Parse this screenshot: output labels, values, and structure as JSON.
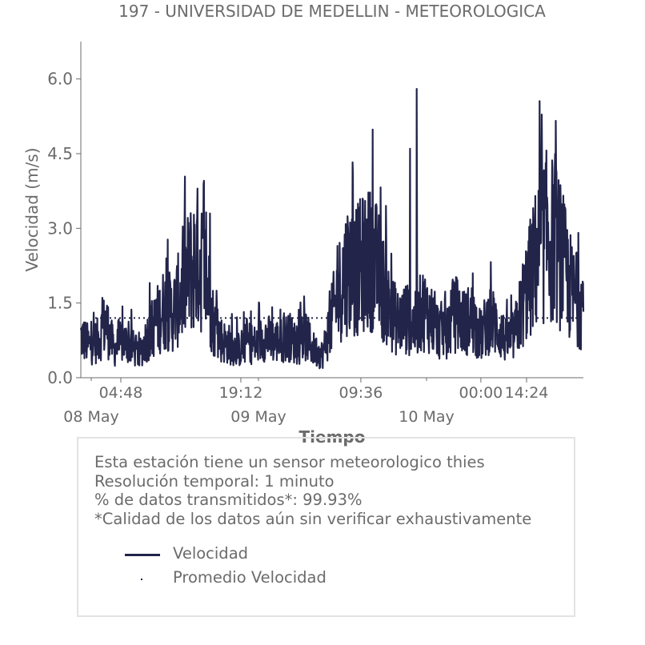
{
  "chart_data": {
    "type": "line",
    "title": "197 - UNIVERSIDAD DE MEDELLIN - METEOROLOGICA",
    "xlabel": "Tiempo",
    "ylabel": "Velocidad (m/s)",
    "ylim": [
      0,
      6.75
    ],
    "y_ticks": [
      "0.0",
      "1.5",
      "3.0",
      "4.5",
      "6.0"
    ],
    "x_range_hours": [
      0,
      60.3
    ],
    "x_ticks": [
      {
        "hour": 4.8,
        "label": "04:48"
      },
      {
        "hour": 19.2,
        "label": "19:12"
      },
      {
        "hour": 33.6,
        "label": "09:36"
      },
      {
        "hour": 48.0,
        "label": "00:00"
      },
      {
        "hour": 62.4,
        "label": "14:24"
      }
    ],
    "x_day_labels": [
      {
        "hour": 0,
        "label": "08 May"
      },
      {
        "hour": 24,
        "label": "09 May"
      },
      {
        "hour": 48,
        "label": "10 May"
      }
    ],
    "grid": false,
    "legend_position": "below",
    "series": [
      {
        "name": "Velocidad",
        "style": "line",
        "color": "#22244a",
        "x_hours": [
          0,
          1,
          2,
          3,
          4,
          5,
          6,
          7,
          8,
          9,
          10,
          11,
          12,
          13,
          14,
          15,
          16,
          17,
          18,
          19,
          20,
          21,
          22,
          23,
          24,
          25,
          26,
          27,
          28,
          29,
          30,
          31,
          32,
          33,
          34,
          35,
          36,
          37,
          38,
          39,
          40,
          41,
          42,
          43,
          44,
          45,
          46,
          47,
          48,
          49,
          50,
          51,
          52,
          53,
          54,
          55,
          56,
          57,
          58,
          59,
          60
        ],
        "y": [
          0.9,
          0.7,
          0.8,
          1.2,
          0.6,
          0.8,
          0.7,
          0.5,
          0.9,
          1.2,
          1.5,
          1.4,
          1.8,
          2.3,
          2.6,
          2.2,
          1.1,
          0.8,
          0.7,
          0.6,
          0.8,
          0.7,
          0.9,
          0.8,
          0.8,
          0.9,
          0.7,
          0.9,
          0.6,
          0.5,
          1.2,
          1.9,
          2.4,
          2.3,
          2.5,
          2.6,
          2.1,
          1.5,
          1.2,
          1.3,
          1.1,
          1.5,
          1.3,
          1.0,
          1.1,
          1.4,
          1.2,
          1.3,
          0.9,
          1.3,
          1.1,
          0.8,
          0.9,
          1.6,
          2.2,
          2.8,
          3.1,
          2.9,
          2.4,
          1.8,
          1.6
        ],
        "peaks": [
          {
            "x_hours": 14.5,
            "y": 3.3
          },
          {
            "x_hours": 15.5,
            "y": 3.3
          },
          {
            "x_hours": 39.5,
            "y": 4.6
          },
          {
            "x_hours": 40.3,
            "y": 5.8
          },
          {
            "x_hours": 61.5,
            "y": 6.1
          },
          {
            "x_hours": 60.8,
            "y": 4.9
          },
          {
            "x_hours": 62.2,
            "y": 5.0
          }
        ]
      },
      {
        "name": "Promedio Velocidad",
        "style": "dotted",
        "color": "#22244a",
        "value": 1.2
      }
    ]
  },
  "info": {
    "lines": [
      "Esta estación tiene un sensor meteorologico thies",
      "Resolución temporal: 1 minuto",
      "% de datos transmitidos*: 99.93%",
      "*Calidad de los datos aún sin verificar exhaustivamente"
    ]
  },
  "legend": {
    "velocidad": "Velocidad",
    "promedio": "Promedio Velocidad"
  }
}
